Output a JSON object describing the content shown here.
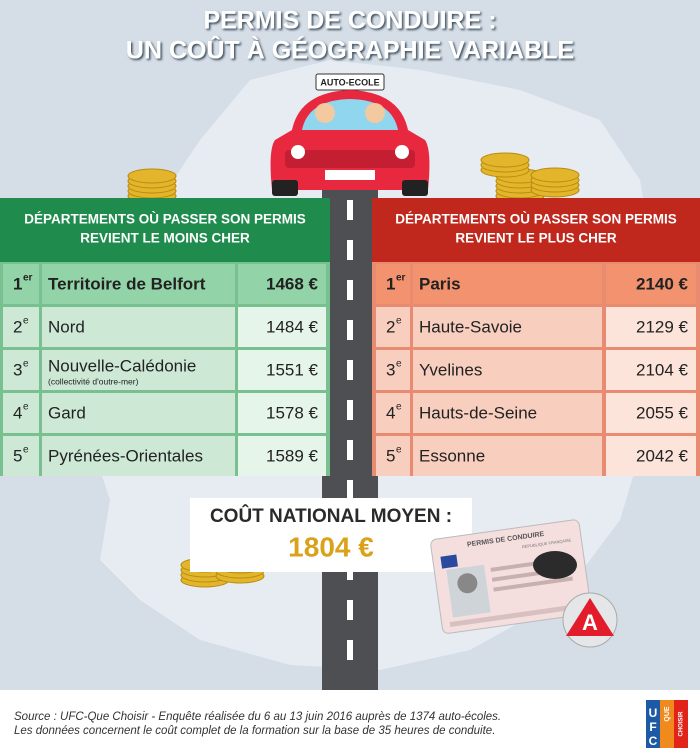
{
  "title": [
    "PERMIS DE CONDUIRE :",
    "UN COÛT À GÉOGRAPHIE VARIABLE"
  ],
  "car_sign": "AUTO-ECOLE",
  "cheapest": {
    "heading": [
      "DÉPARTEMENTS OÙ PASSER SON PERMIS",
      "REVIENT LE MOINS CHER"
    ],
    "rows": [
      {
        "rank": "1",
        "suffix": "er",
        "name": "Territoire de Belfort",
        "price": "1468 €"
      },
      {
        "rank": "2",
        "suffix": "e",
        "name": "Nord",
        "price": "1484 €"
      },
      {
        "rank": "3",
        "suffix": "e",
        "name": "Nouvelle-Calédonie",
        "note": "(collectivité d'outre-mer)",
        "price": "1551 €"
      },
      {
        "rank": "4",
        "suffix": "e",
        "name": "Gard",
        "price": "1578 €"
      },
      {
        "rank": "5",
        "suffix": "e",
        "name": "Pyrénées-Orientales",
        "price": "1589 €"
      }
    ]
  },
  "most_expensive": {
    "heading": [
      "DÉPARTEMENTS OÙ PASSER SON PERMIS",
      "REVIENT LE PLUS CHER"
    ],
    "rows": [
      {
        "rank": "1",
        "suffix": "er",
        "name": "Paris",
        "price": "2140 €"
      },
      {
        "rank": "2",
        "suffix": "e",
        "name": "Haute-Savoie",
        "price": "2129 €"
      },
      {
        "rank": "3",
        "suffix": "e",
        "name": "Yvelines",
        "price": "2104 €"
      },
      {
        "rank": "4",
        "suffix": "e",
        "name": "Hauts-de-Seine",
        "price": "2055 €"
      },
      {
        "rank": "5",
        "suffix": "e",
        "name": "Essonne",
        "price": "2042 €"
      }
    ]
  },
  "national": {
    "label": "COÛT NATIONAL MOYEN :",
    "price": "1804 €"
  },
  "license": {
    "title": "PERMIS DE CONDUIRE",
    "country": "RÉPUBLIQUE FRANÇAISE",
    "badge": "A"
  },
  "source": [
    "Source : UFC-Que Choisir - Enquête réalisée du 6 au 13 juin 2016 auprès de 1374 auto-écoles.",
    "Les données concernent le coût complet de la formation sur la base de 35 heures de conduite."
  ],
  "logo": {
    "letters": [
      "U",
      "F",
      "C"
    ],
    "que": "QUE",
    "choisir": "CHOISIR"
  }
}
